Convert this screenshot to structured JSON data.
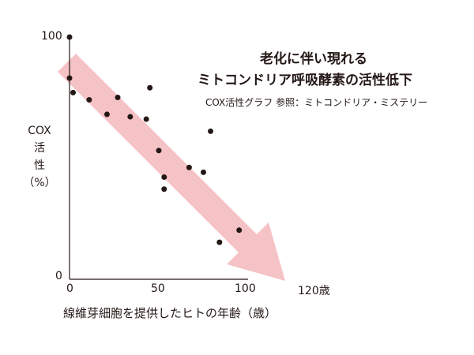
{
  "header": {
    "title_line1": "老化に伴い現れる",
    "title_line2": "ミトコンドリア呼吸酵素の活性低下",
    "subtitle": "COX活性グラフ 参照：ミトコンドリア・ミステリー"
  },
  "axes": {
    "y_label_lines": [
      "COX",
      "活",
      "性",
      "（%）"
    ],
    "y_ticks": [
      "100",
      "0"
    ],
    "x_ticks": [
      "0",
      "50",
      "100",
      "120歳"
    ],
    "x_label": "線維芽細胞を提供したヒトの年齢（歳）"
  },
  "colors": {
    "arrow": "#f5c2c5",
    "dots": "#231815",
    "axis": "#231815"
  },
  "chart_data": {
    "type": "scatter",
    "title": "老化に伴い現れる ミトコンドリア呼吸酵素の活性低下",
    "subtitle": "COX活性グラフ 参照：ミトコンドリア・ミステリー",
    "xlabel": "線維芽細胞を提供したヒトの年齢（歳）",
    "ylabel": "COX活性（%）",
    "xlim": [
      0,
      120
    ],
    "ylim": [
      0,
      100
    ],
    "x_ticks": [
      0,
      50,
      100,
      120
    ],
    "y_ticks": [
      0,
      100
    ],
    "grid": false,
    "annotation": "downward trend arrow (pink)",
    "points": [
      {
        "x": 0,
        "y": 100
      },
      {
        "x": 0,
        "y": 83
      },
      {
        "x": 2,
        "y": 77
      },
      {
        "x": 11,
        "y": 74
      },
      {
        "x": 21,
        "y": 68
      },
      {
        "x": 27,
        "y": 75
      },
      {
        "x": 34,
        "y": 67
      },
      {
        "x": 43,
        "y": 66
      },
      {
        "x": 45,
        "y": 79
      },
      {
        "x": 50,
        "y": 53
      },
      {
        "x": 53,
        "y": 42
      },
      {
        "x": 53,
        "y": 37
      },
      {
        "x": 67,
        "y": 46
      },
      {
        "x": 75,
        "y": 44
      },
      {
        "x": 79,
        "y": 61
      },
      {
        "x": 84,
        "y": 15
      },
      {
        "x": 95,
        "y": 20
      }
    ]
  }
}
